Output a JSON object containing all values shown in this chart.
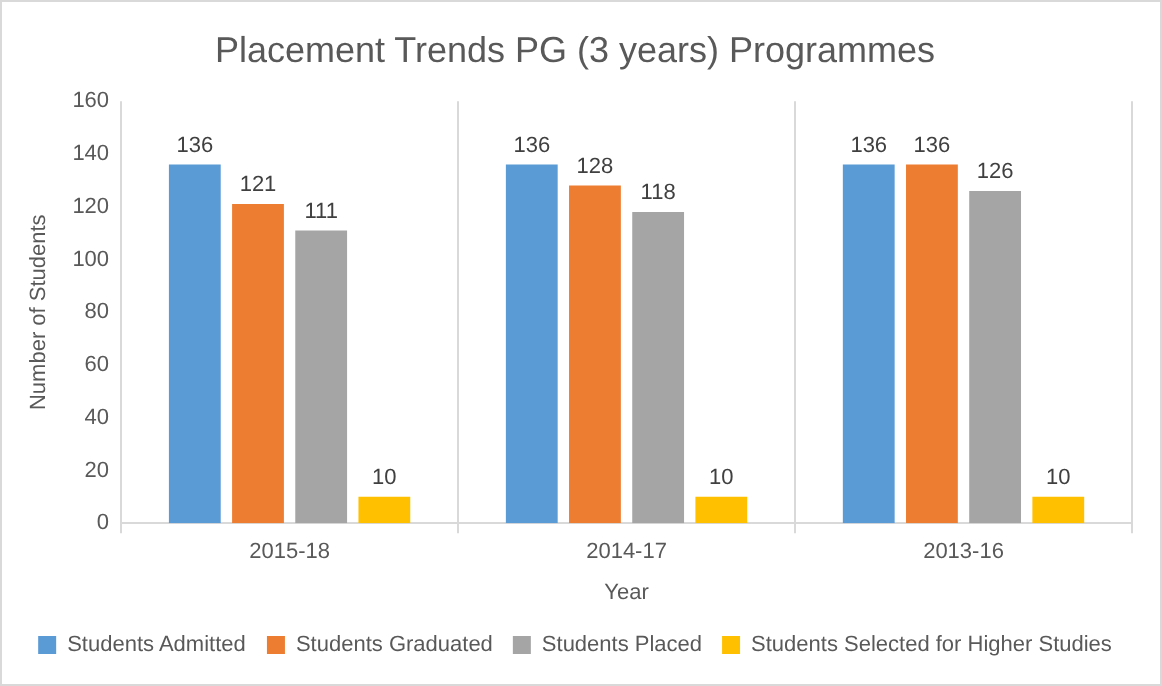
{
  "chart_data": {
    "type": "bar",
    "title": "Placement Trends PG (3 years) Programmes",
    "xlabel": "Year",
    "ylabel": "Number of Students",
    "categories": [
      "2015-18",
      "2014-17",
      "2013-16"
    ],
    "series": [
      {
        "name": "Students Admitted",
        "color": "#5b9bd5",
        "values": [
          136,
          136,
          136
        ]
      },
      {
        "name": "Students Graduated",
        "color": "#ed7d31",
        "values": [
          121,
          128,
          136
        ]
      },
      {
        "name": "Students Placed",
        "color": "#a5a5a5",
        "values": [
          111,
          118,
          126
        ]
      },
      {
        "name": "Students Selected for Higher Studies",
        "color": "#ffc000",
        "values": [
          10,
          10,
          10
        ]
      }
    ],
    "ylim": [
      0,
      160
    ],
    "yticks": [
      0,
      20,
      40,
      60,
      80,
      100,
      120,
      140,
      160
    ],
    "grid": "x",
    "legend": "bottom",
    "data_labels": true
  }
}
